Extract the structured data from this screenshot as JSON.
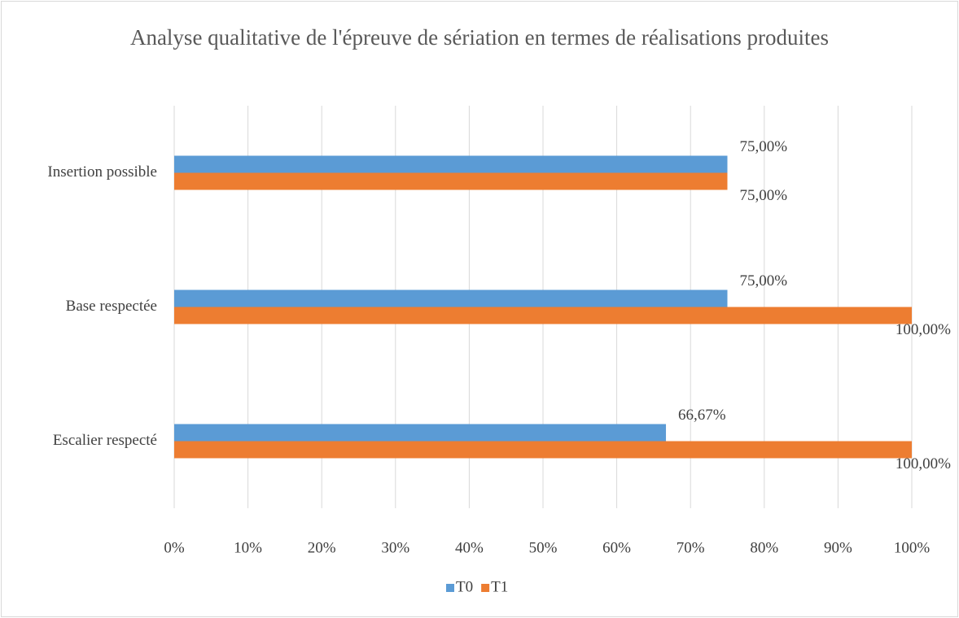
{
  "chart_data": {
    "type": "hbar",
    "title": "Analyse qualitative de l'épreuve de sériation en termes de réalisations produites",
    "categories": [
      "Insertion possible",
      "Base respectée",
      "Escalier respecté"
    ],
    "series": [
      {
        "name": "T0",
        "color": "#5b9bd5",
        "values": [
          75,
          75,
          66.67
        ],
        "value_labels": [
          "75,00%",
          "75,00%",
          "66,67%"
        ]
      },
      {
        "name": "T1",
        "color": "#ed7d31",
        "values": [
          75,
          100,
          100
        ],
        "value_labels": [
          "75,00%",
          "100,00%",
          "100,00%"
        ]
      }
    ],
    "xlim": [
      0,
      100
    ],
    "xticks": [
      {
        "value": 0,
        "label": "0%"
      },
      {
        "value": 10,
        "label": "10%"
      },
      {
        "value": 20,
        "label": "20%"
      },
      {
        "value": 30,
        "label": "30%"
      },
      {
        "value": 40,
        "label": "40%"
      },
      {
        "value": 50,
        "label": "50%"
      },
      {
        "value": 60,
        "label": "60%"
      },
      {
        "value": 70,
        "label": "70%"
      },
      {
        "value": 80,
        "label": "80%"
      },
      {
        "value": 90,
        "label": "90%"
      },
      {
        "value": 100,
        "label": "100%"
      }
    ],
    "grid": true,
    "legend": "bottom"
  }
}
